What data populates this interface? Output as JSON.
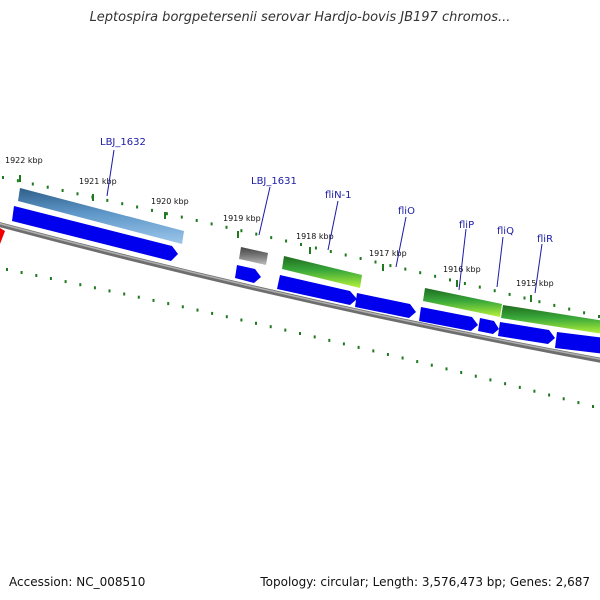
{
  "title": "Leptospira borgpetersenii serovar Hardjo-bovis JB197 chromos...",
  "footer": {
    "accession": "Accession: NC_008510",
    "topology": "Topology: circular; Length: 3,576,473 bp; Genes: 2,687"
  },
  "colors": {
    "backbone": "#7a7a7a",
    "cds": "#0000ee",
    "gene_blue": "#4a7fb0",
    "gene_green": "#2d8a2d",
    "gene_gray": "#666666",
    "tick": "#1f7a1f",
    "label": "#1a1aa6"
  },
  "ticks": [
    {
      "label": "1922 kbp"
    },
    {
      "label": "1921 kbp"
    },
    {
      "label": "1920 kbp"
    },
    {
      "label": "1919 kbp"
    },
    {
      "label": "1918 kbp"
    },
    {
      "label": "1917 kbp"
    },
    {
      "label": "1916 kbp"
    },
    {
      "label": "1915 kbp"
    }
  ],
  "genes": [
    {
      "name": "LBJ_1632",
      "type": "blue"
    },
    {
      "name": "LBJ_1631",
      "type": "gray"
    },
    {
      "name": "fliN-1",
      "type": "green"
    },
    {
      "name": "fliO",
      "type": "green"
    },
    {
      "name": "fliP",
      "type": "green"
    },
    {
      "name": "fliQ",
      "type": "green"
    },
    {
      "name": "fliR",
      "type": "green"
    }
  ]
}
